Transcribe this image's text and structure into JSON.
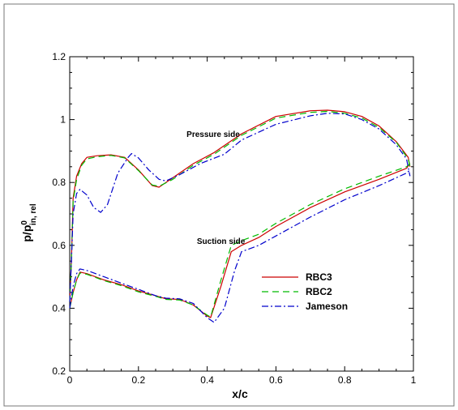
{
  "chart_data": {
    "type": "line",
    "title": "",
    "xlabel": "x/c",
    "ylabel": {
      "base": "p/p",
      "sup": "0",
      "sub": "in, rel"
    },
    "xlim": [
      0,
      1
    ],
    "ylim": [
      0.2,
      1.2
    ],
    "xticks": [
      "0",
      "0.2",
      "0.4",
      "0.6",
      "0.8",
      "1"
    ],
    "yticks": [
      "0.2",
      "0.4",
      "0.6",
      "0.8",
      "1",
      "1.2"
    ],
    "grid": false,
    "legend_position": "lower-right",
    "annotations": [
      {
        "text": "Pressure side",
        "x": 0.34,
        "y": 0.945
      },
      {
        "text": "Suction side",
        "x": 0.37,
        "y": 0.605
      }
    ],
    "series": [
      {
        "name": "RBC3",
        "color": "#cc0000",
        "dash": "solid",
        "curves": [
          [
            [
              0.0,
              0.42
            ],
            [
              0.005,
              0.55
            ],
            [
              0.01,
              0.75
            ],
            [
              0.02,
              0.82
            ],
            [
              0.035,
              0.86
            ],
            [
              0.05,
              0.88
            ],
            [
              0.08,
              0.885
            ],
            [
              0.12,
              0.888
            ],
            [
              0.16,
              0.88
            ],
            [
              0.2,
              0.84
            ],
            [
              0.24,
              0.79
            ],
            [
              0.26,
              0.785
            ],
            [
              0.3,
              0.815
            ],
            [
              0.36,
              0.86
            ],
            [
              0.42,
              0.895
            ],
            [
              0.5,
              0.955
            ],
            [
              0.6,
              1.01
            ],
            [
              0.7,
              1.028
            ],
            [
              0.75,
              1.03
            ],
            [
              0.8,
              1.025
            ],
            [
              0.85,
              1.01
            ],
            [
              0.9,
              0.98
            ],
            [
              0.95,
              0.93
            ],
            [
              0.985,
              0.88
            ],
            [
              0.99,
              0.85
            ]
          ],
          [
            [
              0.0,
              0.4
            ],
            [
              0.01,
              0.45
            ],
            [
              0.02,
              0.49
            ],
            [
              0.03,
              0.515
            ],
            [
              0.05,
              0.51
            ],
            [
              0.1,
              0.49
            ],
            [
              0.15,
              0.475
            ],
            [
              0.2,
              0.455
            ],
            [
              0.25,
              0.44
            ],
            [
              0.28,
              0.43
            ],
            [
              0.32,
              0.428
            ],
            [
              0.36,
              0.41
            ],
            [
              0.4,
              0.375
            ],
            [
              0.41,
              0.37
            ],
            [
              0.44,
              0.47
            ],
            [
              0.47,
              0.58
            ],
            [
              0.5,
              0.6
            ],
            [
              0.55,
              0.625
            ],
            [
              0.6,
              0.66
            ],
            [
              0.7,
              0.72
            ],
            [
              0.8,
              0.77
            ],
            [
              0.9,
              0.81
            ],
            [
              0.98,
              0.845
            ],
            [
              0.99,
              0.86
            ]
          ]
        ]
      },
      {
        "name": "RBC2",
        "color": "#00bb00",
        "dash": "dashed",
        "curves": [
          [
            [
              0.0,
              0.42
            ],
            [
              0.005,
              0.55
            ],
            [
              0.01,
              0.74
            ],
            [
              0.02,
              0.81
            ],
            [
              0.035,
              0.855
            ],
            [
              0.05,
              0.875
            ],
            [
              0.08,
              0.882
            ],
            [
              0.12,
              0.886
            ],
            [
              0.16,
              0.878
            ],
            [
              0.2,
              0.838
            ],
            [
              0.24,
              0.792
            ],
            [
              0.26,
              0.788
            ],
            [
              0.3,
              0.81
            ],
            [
              0.36,
              0.855
            ],
            [
              0.42,
              0.89
            ],
            [
              0.5,
              0.95
            ],
            [
              0.6,
              1.005
            ],
            [
              0.7,
              1.023
            ],
            [
              0.75,
              1.026
            ],
            [
              0.8,
              1.02
            ],
            [
              0.85,
              1.005
            ],
            [
              0.9,
              0.975
            ],
            [
              0.95,
              0.928
            ],
            [
              0.985,
              0.875
            ],
            [
              0.99,
              0.85
            ]
          ],
          [
            [
              0.0,
              0.4
            ],
            [
              0.01,
              0.45
            ],
            [
              0.02,
              0.49
            ],
            [
              0.03,
              0.512
            ],
            [
              0.05,
              0.508
            ],
            [
              0.1,
              0.488
            ],
            [
              0.15,
              0.472
            ],
            [
              0.2,
              0.452
            ],
            [
              0.25,
              0.438
            ],
            [
              0.28,
              0.428
            ],
            [
              0.32,
              0.426
            ],
            [
              0.36,
              0.41
            ],
            [
              0.4,
              0.378
            ],
            [
              0.41,
              0.372
            ],
            [
              0.44,
              0.49
            ],
            [
              0.47,
              0.6
            ],
            [
              0.5,
              0.615
            ],
            [
              0.55,
              0.635
            ],
            [
              0.6,
              0.67
            ],
            [
              0.7,
              0.73
            ],
            [
              0.8,
              0.78
            ],
            [
              0.9,
              0.82
            ],
            [
              0.98,
              0.85
            ],
            [
              0.99,
              0.86
            ]
          ]
        ]
      },
      {
        "name": "Jameson",
        "color": "#0000cc",
        "dash": "dashdot",
        "curves": [
          [
            [
              0.0,
              0.42
            ],
            [
              0.005,
              0.55
            ],
            [
              0.01,
              0.7
            ],
            [
              0.02,
              0.765
            ],
            [
              0.03,
              0.778
            ],
            [
              0.05,
              0.76
            ],
            [
              0.07,
              0.72
            ],
            [
              0.09,
              0.705
            ],
            [
              0.11,
              0.73
            ],
            [
              0.14,
              0.83
            ],
            [
              0.17,
              0.88
            ],
            [
              0.18,
              0.892
            ],
            [
              0.2,
              0.878
            ],
            [
              0.23,
              0.84
            ],
            [
              0.26,
              0.81
            ],
            [
              0.28,
              0.805
            ],
            [
              0.32,
              0.825
            ],
            [
              0.38,
              0.86
            ],
            [
              0.45,
              0.89
            ],
            [
              0.5,
              0.935
            ],
            [
              0.6,
              0.985
            ],
            [
              0.7,
              1.012
            ],
            [
              0.75,
              1.02
            ],
            [
              0.8,
              1.018
            ],
            [
              0.85,
              1.0
            ],
            [
              0.9,
              0.97
            ],
            [
              0.95,
              0.92
            ],
            [
              0.98,
              0.875
            ],
            [
              0.99,
              0.82
            ]
          ],
          [
            [
              0.0,
              0.4
            ],
            [
              0.01,
              0.47
            ],
            [
              0.02,
              0.51
            ],
            [
              0.03,
              0.525
            ],
            [
              0.05,
              0.52
            ],
            [
              0.1,
              0.5
            ],
            [
              0.15,
              0.48
            ],
            [
              0.2,
              0.46
            ],
            [
              0.25,
              0.44
            ],
            [
              0.28,
              0.432
            ],
            [
              0.32,
              0.43
            ],
            [
              0.36,
              0.415
            ],
            [
              0.4,
              0.37
            ],
            [
              0.42,
              0.355
            ],
            [
              0.45,
              0.4
            ],
            [
              0.48,
              0.52
            ],
            [
              0.5,
              0.58
            ],
            [
              0.55,
              0.6
            ],
            [
              0.6,
              0.63
            ],
            [
              0.7,
              0.69
            ],
            [
              0.8,
              0.745
            ],
            [
              0.9,
              0.79
            ],
            [
              0.98,
              0.83
            ],
            [
              0.99,
              0.84
            ]
          ]
        ]
      }
    ]
  }
}
